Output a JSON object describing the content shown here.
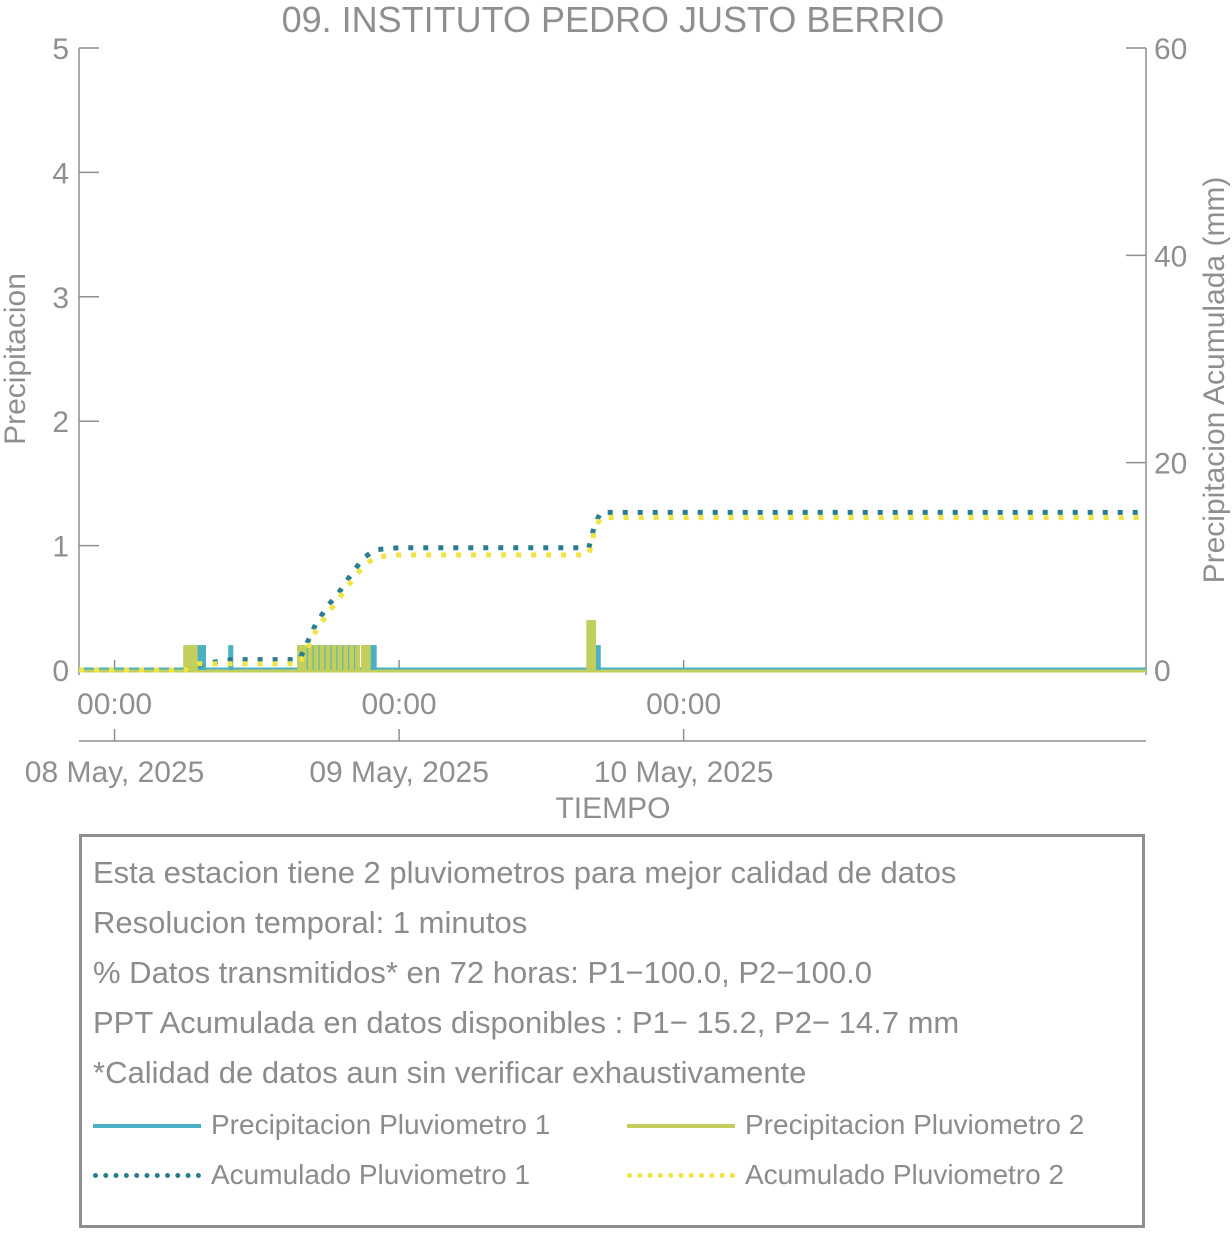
{
  "chart_data": {
    "type": "bar+line",
    "title": "09. INSTITUTO PEDRO JUSTO BERRIO",
    "xlabel": "TIEMPO",
    "ylabel_left": "Precipitacion",
    "ylabel_right": "Precipitacion Acumulada (mm)",
    "ylim_left": [
      0,
      5
    ],
    "ylim_right": [
      0,
      60
    ],
    "yticks_left": [
      "0",
      "1",
      "2",
      "3",
      "4",
      "5"
    ],
    "yticks_right": [
      "0",
      "20",
      "40",
      "60"
    ],
    "x_unit": "hours since 08 May 2025 00:00",
    "xlim": [
      -3,
      87
    ],
    "xticks": [
      {
        "time": "00:00",
        "date": "08 May, 2025",
        "x": 0
      },
      {
        "time": "00:00",
        "date": "09 May, 2025",
        "x": 24
      },
      {
        "time": "00:00",
        "date": "10 May, 2025",
        "x": 48
      }
    ],
    "series": [
      {
        "name": "Precipitacion Pluviometro 1",
        "axis": "left",
        "color": "#4BB0C4",
        "style": "bar",
        "points": [
          [
            7.2,
            0.2
          ],
          [
            7.5,
            0.2
          ],
          [
            9.8,
            0.2
          ],
          [
            15.8,
            0.2
          ],
          [
            16.3,
            0.2
          ],
          [
            16.8,
            0.2
          ],
          [
            17.3,
            0.2
          ],
          [
            17.8,
            0.2
          ],
          [
            18.3,
            0.2
          ],
          [
            18.8,
            0.2
          ],
          [
            19.3,
            0.2
          ],
          [
            19.8,
            0.2
          ],
          [
            20.3,
            0.2
          ],
          [
            21.2,
            0.2
          ],
          [
            21.6,
            0.2
          ],
          [
            21.9,
            0.2
          ],
          [
            40.2,
            0.4
          ],
          [
            40.8,
            0.2
          ]
        ]
      },
      {
        "name": "Precipitacion Pluviometro 2",
        "axis": "left",
        "color": "#C2CF5C",
        "style": "bar",
        "points": [
          [
            6.0,
            0.2
          ],
          [
            6.4,
            0.2
          ],
          [
            6.8,
            0.2
          ],
          [
            15.6,
            0.2
          ],
          [
            16.0,
            0.2
          ],
          [
            16.5,
            0.2
          ],
          [
            17.0,
            0.2
          ],
          [
            17.5,
            0.2
          ],
          [
            18.0,
            0.2
          ],
          [
            18.5,
            0.2
          ],
          [
            19.0,
            0.2
          ],
          [
            19.5,
            0.2
          ],
          [
            20.0,
            0.2
          ],
          [
            20.5,
            0.2
          ],
          [
            21.0,
            0.2
          ],
          [
            21.4,
            0.2
          ],
          [
            40.0,
            0.4
          ],
          [
            40.4,
            0.4
          ]
        ]
      },
      {
        "name": "Acumulado Pluviometro 1",
        "axis": "right",
        "color": "#2A7C91",
        "style": "dotted",
        "points": [
          [
            -3,
            0
          ],
          [
            6,
            0
          ],
          [
            7.5,
            0.6
          ],
          [
            9.8,
            1.0
          ],
          [
            15.6,
            1.0
          ],
          [
            16.2,
            2.5
          ],
          [
            17,
            4.5
          ],
          [
            18,
            6.2
          ],
          [
            19,
            7.6
          ],
          [
            20,
            9.3
          ],
          [
            21,
            10.8
          ],
          [
            22,
            11.6
          ],
          [
            24,
            11.8
          ],
          [
            40,
            11.8
          ],
          [
            40.5,
            14.0
          ],
          [
            41,
            15.2
          ],
          [
            87,
            15.2
          ]
        ]
      },
      {
        "name": "Acumulado Pluviometro 2",
        "axis": "right",
        "color": "#F0E442",
        "style": "dotted",
        "points": [
          [
            -3,
            0
          ],
          [
            6,
            0
          ],
          [
            7,
            0.6
          ],
          [
            9.8,
            0.6
          ],
          [
            15.6,
            0.6
          ],
          [
            16.2,
            1.9
          ],
          [
            17,
            3.8
          ],
          [
            18,
            5.5
          ],
          [
            19,
            7.0
          ],
          [
            20,
            8.6
          ],
          [
            21,
            10.0
          ],
          [
            22,
            10.9
          ],
          [
            24,
            11.1
          ],
          [
            40,
            11.1
          ],
          [
            40.5,
            13.5
          ],
          [
            41,
            14.7
          ],
          [
            87,
            14.7
          ]
        ]
      }
    ],
    "grid": false,
    "legend": "bottom-box"
  },
  "info": {
    "lines": [
      "Esta estacion tiene 2 pluviometros para mejor calidad de datos",
      "Resolucion temporal: 1 minutos",
      "% Datos transmitidos* en 72 horas: P1−100.0, P2−100.0",
      "PPT Acumulada en datos disponibles : P1− 15.2, P2− 14.7 mm",
      "*Calidad de datos aun sin verificar exhaustivamente"
    ]
  },
  "legend": [
    {
      "label": "Precipitacion Pluviometro 1",
      "color": "#4BB0C4",
      "style": "solid"
    },
    {
      "label": "Precipitacion Pluviometro 2",
      "color": "#C2CF5C",
      "style": "solid"
    },
    {
      "label": "Acumulado Pluviometro 1",
      "color": "#2A7C91",
      "style": "dotted"
    },
    {
      "label": "Acumulado Pluviometro 2",
      "color": "#F0E442",
      "style": "dotted"
    }
  ]
}
